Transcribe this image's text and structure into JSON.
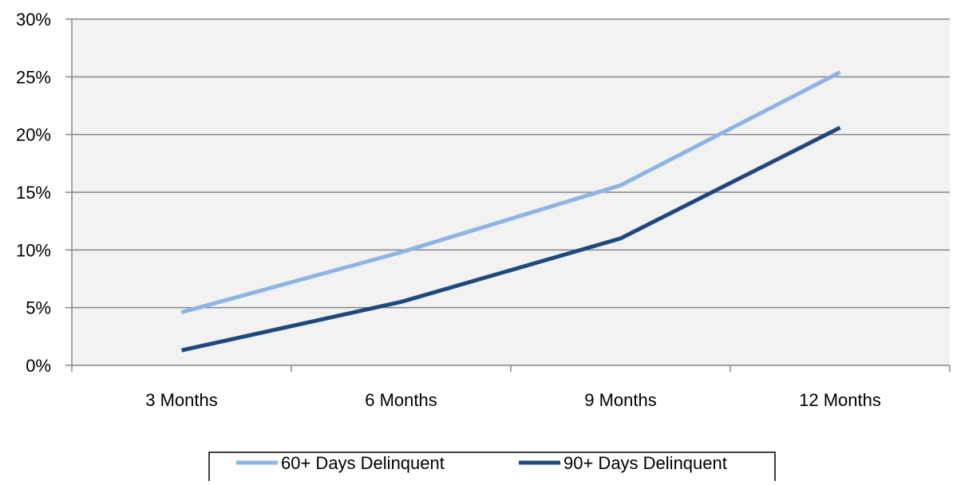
{
  "chart_data": {
    "type": "line",
    "categories": [
      "3 Months",
      "6 Months",
      "9 Months",
      "12 Months"
    ],
    "ylim": [
      0,
      30
    ],
    "yticks": [
      0,
      5,
      10,
      15,
      20,
      25,
      30
    ],
    "ytick_labels": [
      "0%",
      "5%",
      "10%",
      "15%",
      "20%",
      "25%",
      "30%"
    ],
    "grid": true,
    "legend_position": "bottom",
    "series": [
      {
        "name": "60+ Days Delinquent",
        "values": [
          4.6,
          9.8,
          15.6,
          25.4
        ],
        "color": "#8eb4e3"
      },
      {
        "name": "90+ Days Delinquent",
        "values": [
          1.3,
          5.5,
          11.0,
          20.6
        ],
        "color": "#1f497d"
      }
    ]
  },
  "colors": {
    "plot_background": "#f2f2f2",
    "gridline": "#868686",
    "axis": "#868686"
  }
}
